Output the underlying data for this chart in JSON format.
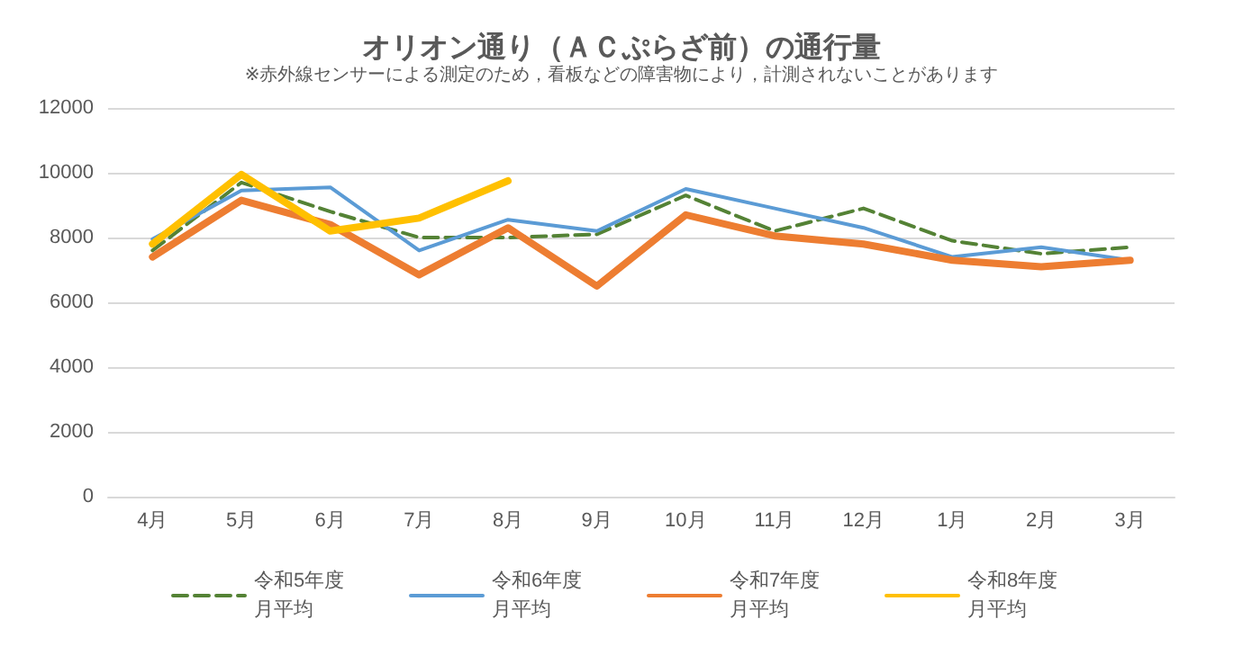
{
  "chart_data": {
    "type": "line",
    "title": "オリオン通り（ＡＣぷらざ前）の通行量",
    "subtitle": "※赤外線センサーによる測定のため，看板などの障害物により，計測されないことがあります",
    "categories": [
      "4月",
      "5月",
      "6月",
      "7月",
      "8月",
      "9月",
      "10月",
      "11月",
      "12月",
      "1月",
      "2月",
      "3月"
    ],
    "series": [
      {
        "name": "令和5年度月平均",
        "color": "#548235",
        "line_style": "dashed",
        "values": [
          7600,
          9700,
          8800,
          8000,
          8000,
          8100,
          9300,
          8200,
          8900,
          7900,
          7500,
          7700
        ]
      },
      {
        "name": "令和6年度月平均",
        "color": "#5b9bd5",
        "values": [
          7950,
          9450,
          9550,
          7600,
          8550,
          8200,
          9500,
          8900,
          8300,
          7400,
          7700,
          7300
        ]
      },
      {
        "name": "令和7年度月平均",
        "color": "#ed7d31",
        "values": [
          7400,
          9150,
          8400,
          6850,
          8300,
          6500,
          8700,
          8050,
          7800,
          7300,
          7100,
          7300
        ]
      },
      {
        "name": "令和8年度月平均",
        "color": "#ffc000",
        "values": [
          7800,
          9950,
          8200,
          8600,
          9750,
          null,
          null,
          null,
          null,
          null,
          null,
          null
        ]
      }
    ],
    "ylim": [
      0,
      12000
    ],
    "yticks": [
      0,
      2000,
      4000,
      6000,
      8000,
      10000,
      12000
    ],
    "grid": "y",
    "legend": "bottom",
    "marker": "none"
  }
}
